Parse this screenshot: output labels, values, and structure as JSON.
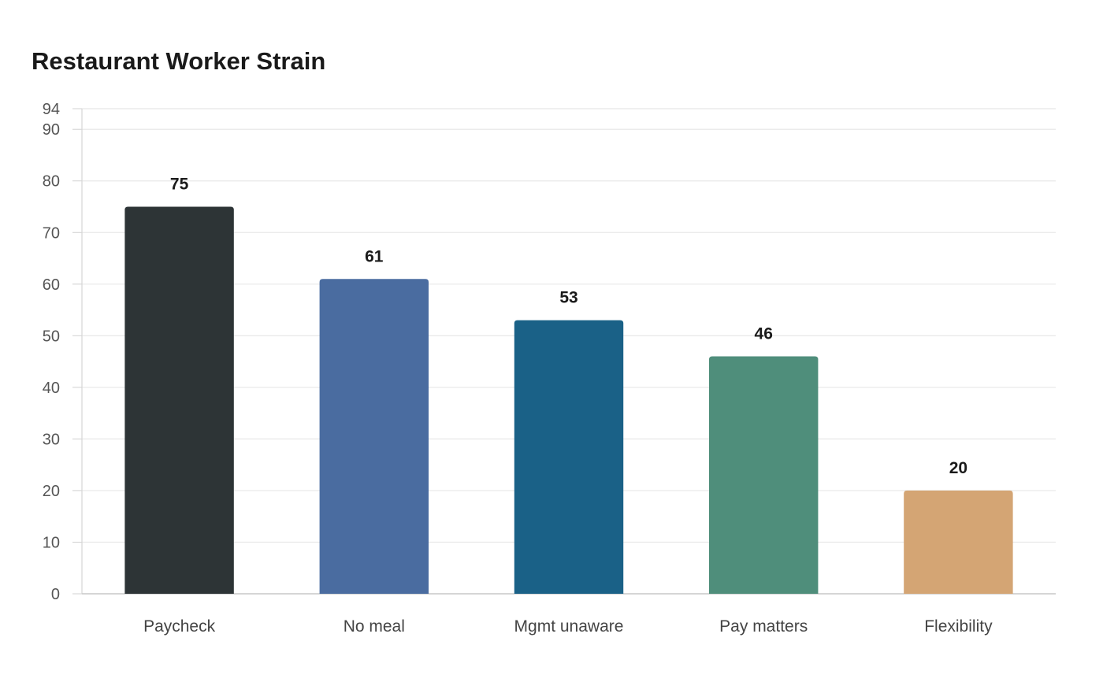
{
  "chart_data": {
    "type": "bar",
    "title": "Restaurant Worker Strain",
    "xlabel": "",
    "ylabel": "",
    "categories": [
      "Paycheck",
      "No meal",
      "Mgmt unaware",
      "Pay matters",
      "Flexibility"
    ],
    "values": [
      75,
      61,
      53,
      46,
      20
    ],
    "colors": [
      "#2d3436",
      "#4a6ca0",
      "#1a6187",
      "#4f8e7b",
      "#d4a574"
    ],
    "ylim": [
      0,
      94
    ],
    "yticks": [
      0,
      10,
      20,
      30,
      40,
      50,
      60,
      70,
      80,
      90,
      94
    ],
    "grid": true,
    "data_labels": true,
    "legend": "none"
  }
}
